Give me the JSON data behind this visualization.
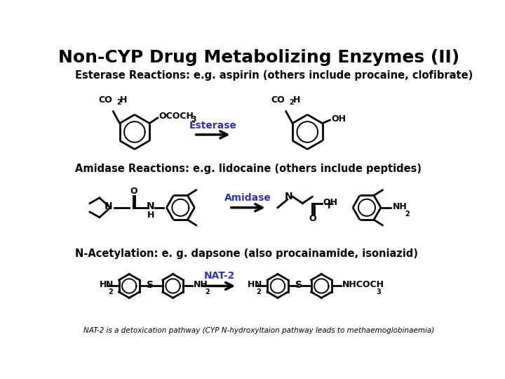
{
  "title": "Non-CYP Drug Metabolizing Enzymes (II)",
  "title_fontsize": 18,
  "bg_color": "#ffffff",
  "text_color": "#000000",
  "section1_label": "Esterase Reactions: e.g. aspirin (others include procaine, clofibrate)",
  "section2_label": "Amidase Reactions: e.g. lidocaine (others include peptides)",
  "section3_label": "N-Acetylation: e. g. dapsone (also procainamide, isoniazid)",
  "footnote": "NAT-2 is a detoxication pathway (CYP N-hydroxyltaion pathway leads to methaemoglobinaemia)",
  "enzyme1": "Esterase",
  "enzyme2": "Amidase",
  "enzyme3": "NAT-2",
  "enzyme_color": "#3333aa"
}
